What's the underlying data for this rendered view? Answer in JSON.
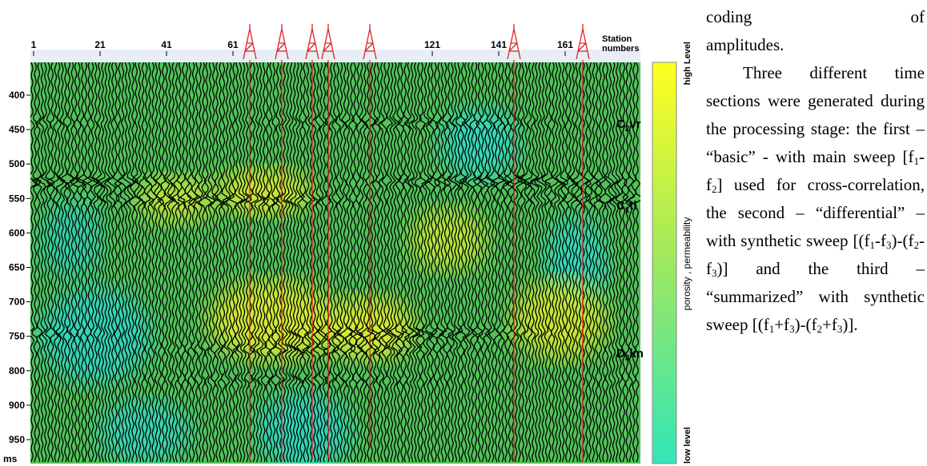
{
  "figure": {
    "station_title": [
      "Station",
      "numbers"
    ],
    "station_ticks": [
      1,
      21,
      41,
      61,
      121,
      141,
      161
    ],
    "time_ticks": [
      400,
      450,
      500,
      550,
      600,
      650,
      700,
      750,
      800,
      900,
      950
    ],
    "time_unit": "ms",
    "horizons": [
      {
        "name": "C",
        "sub": "2",
        "suffix": "vr"
      },
      {
        "name": "C",
        "sub": "1",
        "suffix": "tl"
      },
      {
        "name": "D",
        "sub": "3",
        "suffix": "kn"
      }
    ],
    "colorbar": {
      "top": "high Level",
      "middle": "porosity , permeability",
      "bottom": "low level"
    }
  },
  "text": {
    "paragraph1": [
      "coding of",
      "amplitudes."
    ],
    "paragraph2": [
      {
        "text": "Three different time sections were generated during the processing stage: the first – “basic” - with main sweep [f"
      },
      {
        "text": "1",
        "sub": true
      },
      {
        "text": "-f"
      },
      {
        "text": "2",
        "sub": true
      },
      {
        "text": "] used for cross-correlation, the second – “differential” – with synthetic sweep [(f"
      },
      {
        "text": "1",
        "sub": true
      },
      {
        "text": "-f"
      },
      {
        "text": "3",
        "sub": true
      },
      {
        "text": ")-(f"
      },
      {
        "text": "2",
        "sub": true
      },
      {
        "text": "-f"
      },
      {
        "text": "3",
        "sub": true
      },
      {
        "text": ")] and the third – “summarized” with synthetic sweep [(f"
      },
      {
        "text": "1",
        "sub": true
      },
      {
        "text": "+f"
      },
      {
        "text": "3",
        "sub": true
      },
      {
        "text": ")-(f"
      },
      {
        "text": "2",
        "sub": true
      },
      {
        "text": "+f"
      },
      {
        "text": "3",
        "sub": true
      },
      {
        "text": ")]."
      }
    ]
  }
}
